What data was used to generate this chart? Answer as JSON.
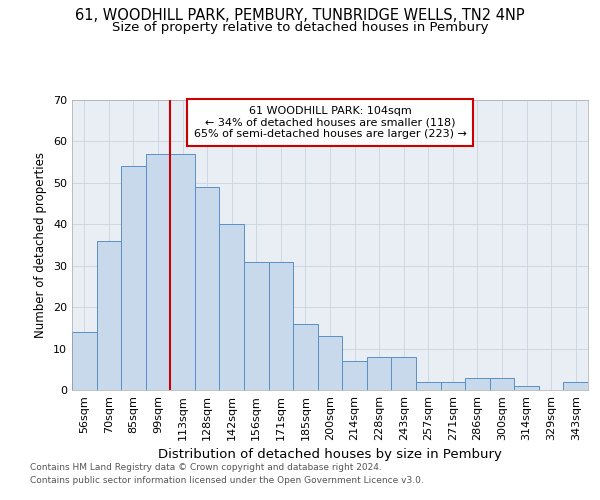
{
  "title1": "61, WOODHILL PARK, PEMBURY, TUNBRIDGE WELLS, TN2 4NP",
  "title2": "Size of property relative to detached houses in Pembury",
  "xlabel": "Distribution of detached houses by size in Pembury",
  "ylabel": "Number of detached properties",
  "footer1": "Contains HM Land Registry data © Crown copyright and database right 2024.",
  "footer2": "Contains public sector information licensed under the Open Government Licence v3.0.",
  "bin_labels": [
    "56sqm",
    "70sqm",
    "85sqm",
    "99sqm",
    "113sqm",
    "128sqm",
    "142sqm",
    "156sqm",
    "171sqm",
    "185sqm",
    "200sqm",
    "214sqm",
    "228sqm",
    "243sqm",
    "257sqm",
    "271sqm",
    "286sqm",
    "300sqm",
    "314sqm",
    "329sqm",
    "343sqm"
  ],
  "bar_values": [
    14,
    36,
    54,
    57,
    57,
    49,
    40,
    31,
    31,
    16,
    13,
    7,
    8,
    8,
    2,
    2,
    3,
    3,
    1,
    0,
    2
  ],
  "bar_color": "#c8d9ec",
  "bar_edge_color": "#5b8fc4",
  "annotation_text": "61 WOODHILL PARK: 104sqm\n← 34% of detached houses are smaller (118)\n65% of semi-detached houses are larger (223) →",
  "annotation_box_color": "#ffffff",
  "annotation_box_edge_color": "#cc0000",
  "vline_color": "#cc0000",
  "ylim": [
    0,
    70
  ],
  "yticks": [
    0,
    10,
    20,
    30,
    40,
    50,
    60,
    70
  ],
  "grid_color": "#c8d4e0",
  "background_color": "#e8eef4",
  "fig_background": "#ffffff",
  "title1_fontsize": 10.5,
  "title2_fontsize": 9.5,
  "xlabel_fontsize": 9.5,
  "ylabel_fontsize": 8.5,
  "tick_fontsize": 8,
  "annotation_fontsize": 8,
  "footer_fontsize": 6.5,
  "footer_color": "#555555"
}
